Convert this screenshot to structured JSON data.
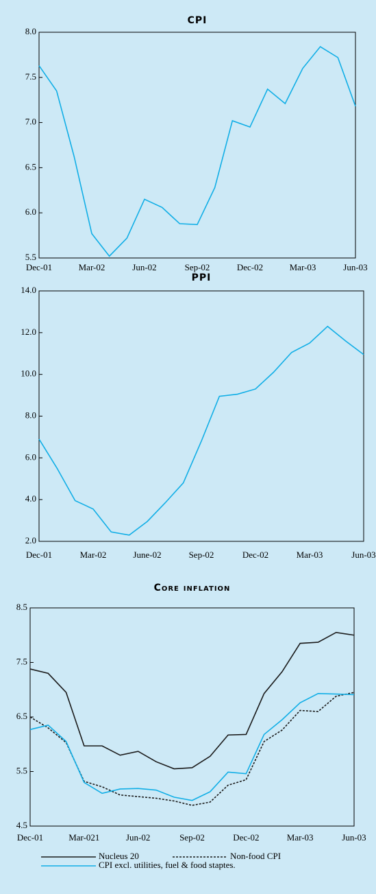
{
  "chart_data": [
    {
      "type": "line",
      "title": "CPI",
      "categories": [
        "Dec-01",
        null,
        null,
        "Mar-02",
        null,
        null,
        "Jun-02",
        null,
        null,
        "Sep-02",
        null,
        null,
        "Dec-02",
        null,
        null,
        "Mar-03",
        null,
        null,
        "Jun-03"
      ],
      "values": [
        7.63,
        7.35,
        6.62,
        5.77,
        5.52,
        5.72,
        6.15,
        6.06,
        5.88,
        5.87,
        6.28,
        7.02,
        6.95,
        7.37,
        7.21,
        7.6,
        7.84,
        7.72,
        7.18
      ],
      "color": "#10aee6",
      "ylim": [
        5.5,
        8.0
      ],
      "yticks": [
        5.5,
        {
          "value": 6,
          "label": "6.0"
        },
        6.5,
        {
          "value": 7,
          "label": "7.0"
        },
        7.5,
        {
          "value": 8,
          "label": "8.0"
        }
      ]
    },
    {
      "type": "line",
      "title": "PPI",
      "categories": [
        "Dec-01",
        null,
        null,
        "Mar-02",
        null,
        null,
        "June-02",
        null,
        null,
        "Sep-02",
        null,
        null,
        "Dec-02",
        null,
        null,
        "Mar-03",
        null,
        null,
        "Jun-03"
      ],
      "values": [
        6.9,
        5.5,
        3.95,
        3.55,
        2.45,
        2.3,
        2.95,
        3.85,
        4.8,
        6.8,
        8.95,
        9.05,
        9.3,
        10.1,
        11.05,
        11.5,
        12.3,
        11.6,
        10.95
      ],
      "color": "#10aee6",
      "ylim": [
        2.0,
        14.0
      ],
      "yticks": [
        {
          "value": 2,
          "label": "2.0"
        },
        {
          "value": 4,
          "label": "4.0"
        },
        {
          "value": 6,
          "label": "6.0"
        },
        {
          "value": 8,
          "label": "8.0"
        },
        {
          "value": 10,
          "label": "10.0"
        },
        {
          "value": 12,
          "label": "12.0"
        },
        {
          "value": 14,
          "label": "14.0"
        }
      ]
    },
    {
      "type": "line",
      "title": "Core inflation",
      "categories": [
        "Dec-01",
        null,
        null,
        "Mar-021",
        null,
        null,
        "Jun-02",
        null,
        null,
        "Sep-02",
        null,
        null,
        "Dec-02",
        null,
        null,
        "Mar-03",
        null,
        null,
        "Jun-03"
      ],
      "series": [
        {
          "name": "Nucleus 20",
          "color": "#1a1a1a",
          "values": [
            7.38,
            7.3,
            6.95,
            5.97,
            5.97,
            5.8,
            5.87,
            5.68,
            5.55,
            5.57,
            5.78,
            6.17,
            6.18,
            6.93,
            7.33,
            7.85,
            7.87,
            8.05,
            8.0
          ]
        },
        {
          "name": "Non-food CPI",
          "color": "#1a1a1a",
          "dash": true,
          "values": [
            6.5,
            6.3,
            6.03,
            5.32,
            5.22,
            5.07,
            5.04,
            5.01,
            4.96,
            4.88,
            4.94,
            5.25,
            5.35,
            6.05,
            6.26,
            6.62,
            6.6,
            6.88,
            6.95
          ]
        },
        {
          "name": "CPI excl. utilities, fuel & food staptes.",
          "color": "#10aee6",
          "values": [
            6.27,
            6.35,
            6.05,
            5.3,
            5.1,
            5.18,
            5.19,
            5.16,
            5.03,
            4.97,
            5.13,
            5.49,
            5.46,
            6.18,
            6.45,
            6.76,
            6.93,
            6.92,
            6.91
          ]
        }
      ],
      "ylim": [
        4.5,
        8.5
      ],
      "yticks": [
        4.5,
        5.5,
        6.5,
        7.5,
        8.5
      ]
    }
  ]
}
